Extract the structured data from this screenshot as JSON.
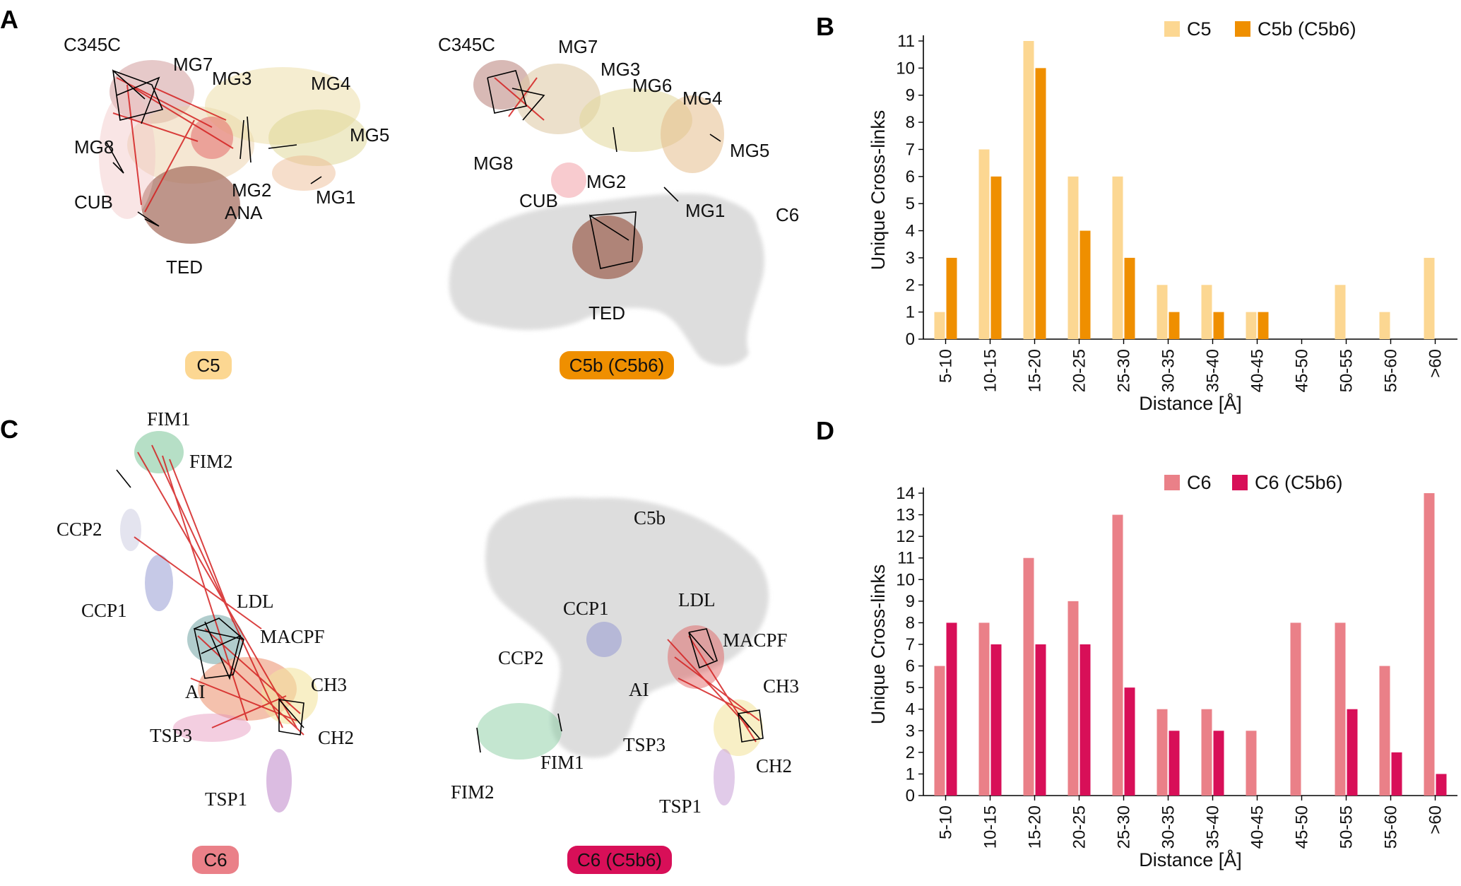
{
  "panels": {
    "a": "A",
    "b": "B",
    "c": "C",
    "d": "D"
  },
  "structures": {
    "c5": {
      "caption": "C5",
      "caption_color": "#fcd792",
      "domains": [
        "C345C",
        "MG7",
        "MG3",
        "MG4",
        "MG8",
        "MG5",
        "MG2",
        "CUB",
        "ANA",
        "MG1",
        "TED"
      ]
    },
    "c5b": {
      "caption": "C5b (C5b6)",
      "caption_color": "#ef8f00",
      "domains": [
        "C345C",
        "MG7",
        "MG3",
        "MG6",
        "MG4",
        "MG5",
        "MG8",
        "MG2",
        "CUB",
        "MG1",
        "C6",
        "TED"
      ]
    },
    "c6": {
      "caption": "C6",
      "caption_color": "#ea8088",
      "domains": [
        "FIM1",
        "FIM2",
        "CCP2",
        "CCP1",
        "LDL",
        "MACPF",
        "CH3",
        "AI",
        "TSP3",
        "CH2",
        "TSP1"
      ]
    },
    "c6b": {
      "caption": "C6 (C5b6)",
      "caption_color": "#d80f58",
      "domains": [
        "C5b",
        "CCP1",
        "LDL",
        "MACPF",
        "CCP2",
        "AI",
        "CH3",
        "TSP3",
        "FIM1",
        "CH2",
        "FIM2",
        "TSP1"
      ]
    }
  },
  "chart_data": [
    {
      "panel": "B",
      "type": "bar",
      "xlabel": "Distance [Å]",
      "ylabel": "Unique Cross-links",
      "ylim": [
        0,
        11
      ],
      "yticks": [
        "0",
        "1",
        "2",
        "3",
        "4",
        "5",
        "6",
        "7",
        "8",
        "9",
        "10",
        "11"
      ],
      "categories": [
        "5-10",
        "10-15",
        "15-20",
        "20-25",
        "25-30",
        "30-35",
        "35-40",
        "40-45",
        "45-50",
        "50-55",
        "55-60",
        ">60"
      ],
      "legend_position": "top",
      "series": [
        {
          "name": "C5",
          "color": "#fcd792",
          "values": [
            1,
            7,
            11,
            6,
            6,
            2,
            2,
            1,
            0,
            2,
            1,
            3
          ]
        },
        {
          "name": "C5b (C5b6)",
          "color": "#ef8f00",
          "values": [
            3,
            6,
            10,
            4,
            3,
            1,
            1,
            1,
            0,
            0,
            0,
            0
          ]
        }
      ]
    },
    {
      "panel": "D",
      "type": "bar",
      "xlabel": "Distance [Å]",
      "ylabel": "Unique Cross-links",
      "ylim": [
        0,
        14
      ],
      "yticks": [
        "0",
        "1",
        "2",
        "3",
        "4",
        "5",
        "6",
        "7",
        "8",
        "9",
        "10",
        "11",
        "12",
        "13",
        "14"
      ],
      "categories": [
        "5-10",
        "10-15",
        "15-20",
        "20-25",
        "25-30",
        "30-35",
        "35-40",
        "40-45",
        "45-50",
        "50-55",
        "55-60",
        ">60"
      ],
      "legend_position": "top",
      "series": [
        {
          "name": "C6",
          "color": "#ea8088",
          "values": [
            6,
            8,
            11,
            9,
            13,
            4,
            4,
            3,
            8,
            8,
            6,
            14
          ]
        },
        {
          "name": "C6 (C5b6)",
          "color": "#d80f58",
          "values": [
            8,
            7,
            7,
            7,
            5,
            3,
            3,
            0,
            0,
            4,
            2,
            1
          ]
        }
      ]
    }
  ]
}
